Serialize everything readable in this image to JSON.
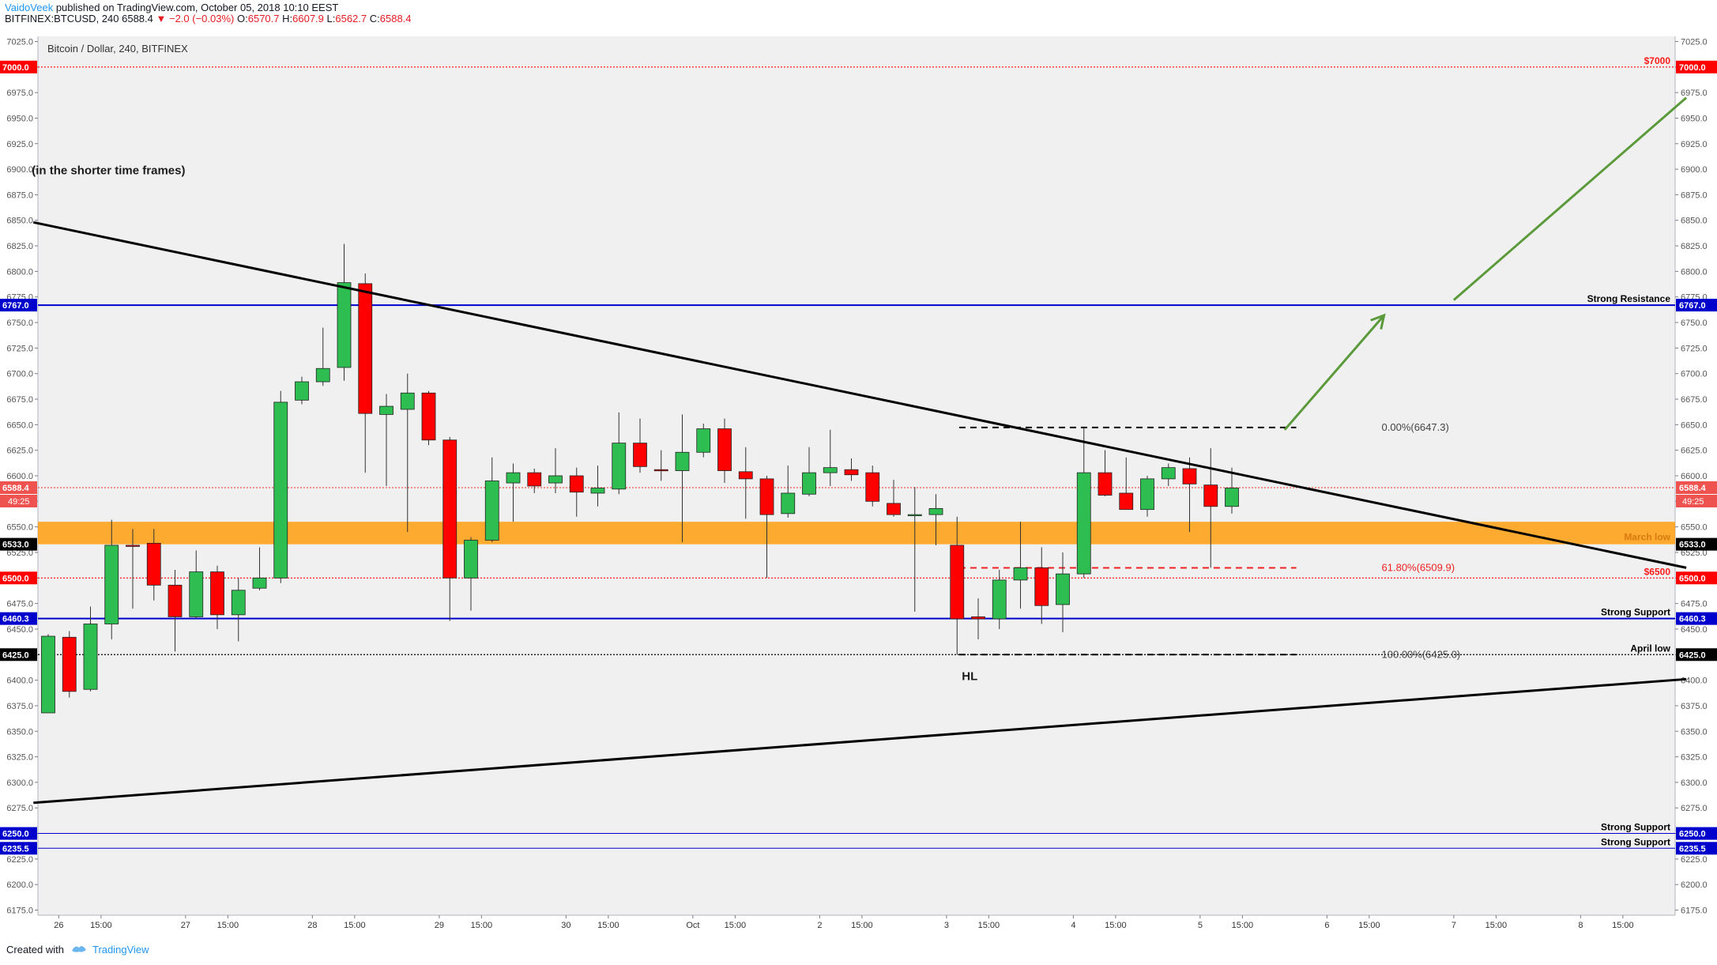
{
  "header": {
    "user": "VaidoVeek",
    "published": "published on TradingView.com, October 05, 2018 10:10 EEST",
    "symbol": "BITFINEX:BTCUSD, 240",
    "last": "6588.4",
    "change": "▼ −2.0 (−0.03%)",
    "o_label": "O:",
    "o": "6570.7",
    "h_label": "H:",
    "h": "6607.9",
    "l_label": "L:",
    "l": "6562.7",
    "c_label": "C:",
    "c": "6588.4"
  },
  "footer": {
    "created": "Created with",
    "brand": "TradingView"
  },
  "chart_data": {
    "type": "candlestick",
    "title": "Bitcoin / Dollar, 240, BITFINEX",
    "ylim": [
      6170,
      7030
    ],
    "y_ticks": [
      6175,
      6200,
      6225,
      6250,
      6275,
      6300,
      6325,
      6350,
      6375,
      6400,
      6425,
      6450,
      6475,
      6500,
      6525,
      6550,
      6575,
      6600,
      6625,
      6650,
      6675,
      6700,
      6725,
      6750,
      6775,
      6800,
      6825,
      6850,
      6875,
      6900,
      6925,
      6950,
      6975,
      7000,
      7025
    ],
    "x_ticks": [
      {
        "i": 0.5,
        "label": "26"
      },
      {
        "i": 2.5,
        "label": "15:00"
      },
      {
        "i": 6.5,
        "label": "27"
      },
      {
        "i": 8.5,
        "label": "15:00"
      },
      {
        "i": 12.5,
        "label": "28"
      },
      {
        "i": 14.5,
        "label": "15:00"
      },
      {
        "i": 18.5,
        "label": "29"
      },
      {
        "i": 20.5,
        "label": "15:00"
      },
      {
        "i": 24.5,
        "label": "30"
      },
      {
        "i": 26.5,
        "label": "15:00"
      },
      {
        "i": 30.5,
        "label": "Oct"
      },
      {
        "i": 32.5,
        "label": "15:00"
      },
      {
        "i": 36.5,
        "label": "2"
      },
      {
        "i": 38.5,
        "label": "15:00"
      },
      {
        "i": 42.5,
        "label": "3"
      },
      {
        "i": 44.5,
        "label": "15:00"
      },
      {
        "i": 48.5,
        "label": "4"
      },
      {
        "i": 50.5,
        "label": "15:00"
      },
      {
        "i": 54.5,
        "label": "5"
      },
      {
        "i": 56.5,
        "label": "15:00"
      },
      {
        "i": 60.5,
        "label": "6"
      },
      {
        "i": 62.5,
        "label": "15:00"
      },
      {
        "i": 66.5,
        "label": "7"
      },
      {
        "i": 68.5,
        "label": "15:00"
      },
      {
        "i": 72.5,
        "label": "8"
      },
      {
        "i": 74.5,
        "label": "15:00"
      }
    ],
    "candles": [
      {
        "o": 6368,
        "h": 6445,
        "l": 6368,
        "c": 6443
      },
      {
        "o": 6442,
        "h": 6448,
        "l": 6383,
        "c": 6389
      },
      {
        "o": 6391,
        "h": 6472,
        "l": 6389,
        "c": 6455
      },
      {
        "o": 6455,
        "h": 6557,
        "l": 6440,
        "c": 6532
      },
      {
        "o": 6532,
        "h": 6548,
        "l": 6470,
        "c": 6531
      },
      {
        "o": 6534,
        "h": 6548,
        "l": 6478,
        "c": 6493
      },
      {
        "o": 6493,
        "h": 6508,
        "l": 6428,
        "c": 6462
      },
      {
        "o": 6462,
        "h": 6527,
        "l": 6460,
        "c": 6506
      },
      {
        "o": 6506,
        "h": 6512,
        "l": 6450,
        "c": 6464
      },
      {
        "o": 6464,
        "h": 6500,
        "l": 6438,
        "c": 6488
      },
      {
        "o": 6490,
        "h": 6530,
        "l": 6488,
        "c": 6500
      },
      {
        "o": 6500,
        "h": 6683,
        "l": 6495,
        "c": 6672
      },
      {
        "o": 6674,
        "h": 6697,
        "l": 6670,
        "c": 6692
      },
      {
        "o": 6692,
        "h": 6745,
        "l": 6688,
        "c": 6705
      },
      {
        "o": 6706,
        "h": 6827,
        "l": 6693,
        "c": 6789
      },
      {
        "o": 6788,
        "h": 6798,
        "l": 6603,
        "c": 6661
      },
      {
        "o": 6660,
        "h": 6680,
        "l": 6590,
        "c": 6668
      },
      {
        "o": 6665,
        "h": 6700,
        "l": 6545,
        "c": 6681
      },
      {
        "o": 6681,
        "h": 6683,
        "l": 6630,
        "c": 6635
      },
      {
        "o": 6635,
        "h": 6638,
        "l": 6458,
        "c": 6500
      },
      {
        "o": 6500,
        "h": 6540,
        "l": 6468,
        "c": 6537
      },
      {
        "o": 6537,
        "h": 6618,
        "l": 6535,
        "c": 6595
      },
      {
        "o": 6593,
        "h": 6612,
        "l": 6555,
        "c": 6603
      },
      {
        "o": 6603,
        "h": 6607,
        "l": 6583,
        "c": 6590
      },
      {
        "o": 6593,
        "h": 6627,
        "l": 6583,
        "c": 6600
      },
      {
        "o": 6600,
        "h": 6608,
        "l": 6560,
        "c": 6584
      },
      {
        "o": 6583,
        "h": 6610,
        "l": 6570,
        "c": 6588
      },
      {
        "o": 6587,
        "h": 6662,
        "l": 6582,
        "c": 6632
      },
      {
        "o": 6632,
        "h": 6656,
        "l": 6603,
        "c": 6609
      },
      {
        "o": 6606,
        "h": 6625,
        "l": 6595,
        "c": 6605
      },
      {
        "o": 6605,
        "h": 6660,
        "l": 6535,
        "c": 6623
      },
      {
        "o": 6623,
        "h": 6651,
        "l": 6618,
        "c": 6646
      },
      {
        "o": 6646,
        "h": 6656,
        "l": 6593,
        "c": 6605
      },
      {
        "o": 6604,
        "h": 6628,
        "l": 6558,
        "c": 6597
      },
      {
        "o": 6597,
        "h": 6600,
        "l": 6500,
        "c": 6562
      },
      {
        "o": 6563,
        "h": 6610,
        "l": 6559,
        "c": 6583
      },
      {
        "o": 6582,
        "h": 6628,
        "l": 6580,
        "c": 6603
      },
      {
        "o": 6603,
        "h": 6645,
        "l": 6590,
        "c": 6608
      },
      {
        "o": 6606,
        "h": 6617,
        "l": 6595,
        "c": 6601
      },
      {
        "o": 6603,
        "h": 6610,
        "l": 6570,
        "c": 6575
      },
      {
        "o": 6573,
        "h": 6596,
        "l": 6560,
        "c": 6562
      },
      {
        "o": 6562,
        "h": 6589,
        "l": 6467,
        "c": 6562
      },
      {
        "o": 6562,
        "h": 6582,
        "l": 6532,
        "c": 6568
      },
      {
        "o": 6532,
        "h": 6560,
        "l": 6425,
        "c": 6460
      },
      {
        "o": 6462,
        "h": 6480,
        "l": 6440,
        "c": 6460
      },
      {
        "o": 6460,
        "h": 6508,
        "l": 6450,
        "c": 6498
      },
      {
        "o": 6498,
        "h": 6555,
        "l": 6470,
        "c": 6510
      },
      {
        "o": 6510,
        "h": 6530,
        "l": 6455,
        "c": 6473
      },
      {
        "o": 6474,
        "h": 6525,
        "l": 6447,
        "c": 6504
      },
      {
        "o": 6504,
        "h": 6648,
        "l": 6500,
        "c": 6603
      },
      {
        "o": 6603,
        "h": 6625,
        "l": 6580,
        "c": 6581
      },
      {
        "o": 6583,
        "h": 6618,
        "l": 6568,
        "c": 6567
      },
      {
        "o": 6567,
        "h": 6600,
        "l": 6560,
        "c": 6597
      },
      {
        "o": 6597,
        "h": 6612,
        "l": 6590,
        "c": 6608
      },
      {
        "o": 6607,
        "h": 6618,
        "l": 6545,
        "c": 6592
      },
      {
        "o": 6591,
        "h": 6627,
        "l": 6510,
        "c": 6570
      },
      {
        "o": 6570,
        "h": 6608,
        "l": 6563,
        "c": 6588
      }
    ],
    "price_levels": [
      {
        "price": 7000.0,
        "label": "7000.0",
        "color": "#ff0000",
        "style": "dotted",
        "annotation": "$7000",
        "text_color": "#ff1a1a"
      },
      {
        "price": 6767.0,
        "label": "6767.0",
        "color": "#0000cc",
        "style": "solid",
        "annotation": "Strong Resistance",
        "text_color": "#000000"
      },
      {
        "price": 6588.4,
        "label": "6588.4",
        "color": "#ef5350",
        "style": "dotted",
        "annotation": "",
        "text_color": "#000000",
        "countdown": "49:25"
      },
      {
        "price": 6533.0,
        "label": "6533.0",
        "color": "#000000",
        "style": "none",
        "annotation": "",
        "text_color": "#000000"
      },
      {
        "price": 6500.0,
        "label": "6500.0",
        "color": "#ff0000",
        "style": "dotted",
        "annotation": "$6500",
        "text_color": "#ff1a1a"
      },
      {
        "price": 6460.3,
        "label": "6460.3",
        "color": "#0000cc",
        "style": "solid",
        "annotation": "Strong Support",
        "text_color": "#000000"
      },
      {
        "price": 6425.0,
        "label": "6425.0",
        "color": "#000000",
        "style": "dotted",
        "annotation": "April low",
        "text_color": "#000000"
      },
      {
        "price": 6250.0,
        "label": "6250.0",
        "color": "#0000cc",
        "style": "thin",
        "annotation": "Strong Support",
        "text_color": "#000000"
      },
      {
        "price": 6235.5,
        "label": "6235.5",
        "color": "#0000cc",
        "style": "thin",
        "annotation": "Strong Support",
        "text_color": "#000000"
      }
    ],
    "zones": [
      {
        "from": 6533,
        "to": 6555,
        "color": "#ff9800",
        "label": "March low"
      }
    ],
    "fibonacci": [
      {
        "price": 6647.3,
        "label": "0.00%(6647.3)",
        "color": "#000000"
      },
      {
        "price": 6509.9,
        "label": "61.80%(6509.9)",
        "color": "#ef2222"
      },
      {
        "price": 6425.0,
        "label": "100.00%(6425.0)",
        "color": "#000000"
      }
    ],
    "trendlines": [
      {
        "from": {
          "i": -0.7,
          "p": 6848
        },
        "to": {
          "i": 77.5,
          "p": 6510
        },
        "color": "#000000",
        "width": 3
      },
      {
        "from": {
          "i": -0.7,
          "p": 6280
        },
        "to": {
          "i": 77.5,
          "p": 6401
        },
        "color": "#000000",
        "width": 3
      }
    ],
    "arrows": [
      {
        "from": {
          "i": 58.5,
          "p": 6645
        },
        "to": {
          "i": 63.2,
          "p": 6757
        },
        "color": "#5a9a3a"
      }
    ],
    "projection_lines": [
      {
        "from": {
          "i": 66.5,
          "p": 6772
        },
        "to": {
          "i": 77.5,
          "p": 6970
        },
        "color": "#5a9a3a"
      }
    ],
    "annotations": [
      {
        "text": "(in the shorter time frames)",
        "i": -0.7,
        "p": 6895
      },
      {
        "text": "HL",
        "i": 43.3,
        "p": 6400
      }
    ],
    "colors": {
      "up": "#2ebd50",
      "down": "#ff0000",
      "bg": "#f0f0f0",
      "axis_bg": "#ffffff"
    }
  }
}
